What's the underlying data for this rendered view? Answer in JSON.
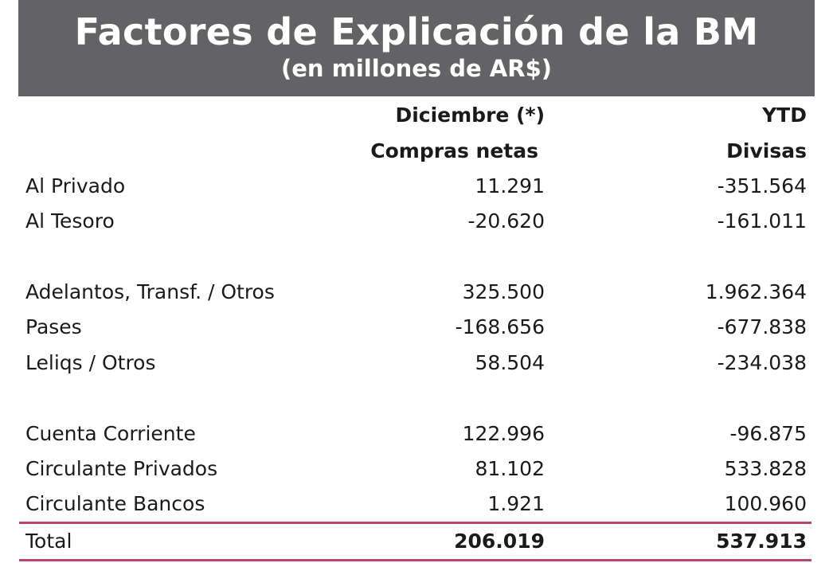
{
  "header": {
    "title": "Factores de Explicación de la BM",
    "subtitle": "(en millones de AR$)"
  },
  "columns": {
    "col1_line1": "Diciembre (*)",
    "col1_line2": "Compras netas",
    "col2_line1": "YTD",
    "col2_line2": "Divisas"
  },
  "rows": [
    {
      "label": "Al Privado",
      "col1": "11.291",
      "col2": "-351.564"
    },
    {
      "label": "Al Tesoro",
      "col1": "-20.620",
      "col2": "-161.011"
    },
    {
      "label": "Adelantos, Transf. / Otros",
      "col1": "325.500",
      "col2": "1.962.364"
    },
    {
      "label": "Pases",
      "col1": "-168.656",
      "col2": "-677.838"
    },
    {
      "label": "Leliqs / Otros",
      "col1": "58.504",
      "col2": "-234.038"
    },
    {
      "label": "Cuenta Corriente",
      "col1": "122.996",
      "col2": "-96.875"
    },
    {
      "label": "Circulante Privados",
      "col1": "81.102",
      "col2": "533.828"
    },
    {
      "label": "Circulante Bancos",
      "col1": "1.921",
      "col2": "100.960"
    }
  ],
  "total": {
    "label": "Total",
    "col1": "206.019",
    "col2": "537.913"
  },
  "colors": {
    "header_bg": "#636366",
    "rule": "#b8456a"
  }
}
